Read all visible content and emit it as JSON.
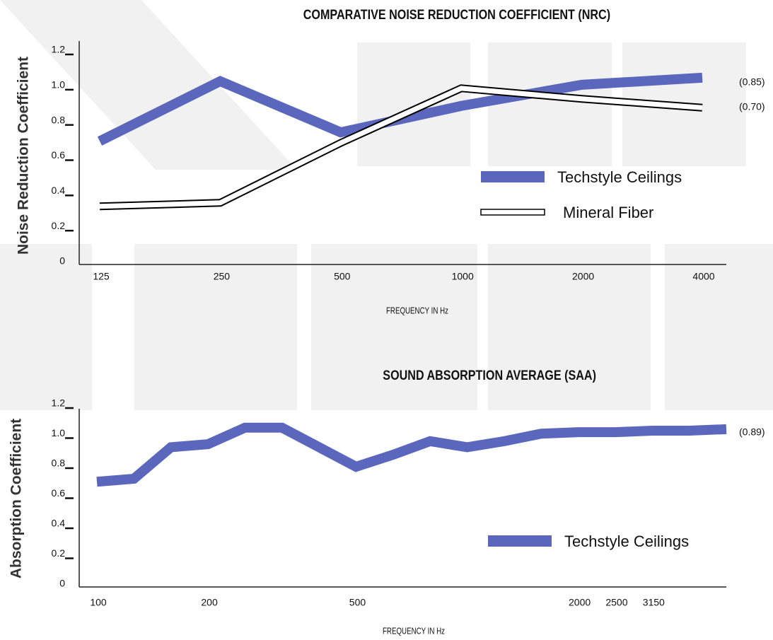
{
  "chart_data": [
    {
      "type": "line",
      "title": "COMPARATIVE NOISE REDUCTION COEFFICIENT (NRC)",
      "y_label": "Noise Reduction Coefficient",
      "x_label": "FREQUENCY IN Hz",
      "categories": [
        "125",
        "250",
        "500",
        "1000",
        "2000",
        "4000"
      ],
      "series": [
        {
          "name": "Techstyle Ceilings",
          "color": "#5a67bd",
          "values": [
            0.7,
            1.04,
            0.75,
            0.9,
            1.02,
            1.06
          ],
          "end_label": "(0.85)"
        },
        {
          "name": "Mineral Fiber",
          "color": "#ffffff",
          "edgecolor": "#000000",
          "values": [
            0.33,
            0.35,
            0.69,
            1.0,
            0.94,
            0.89
          ],
          "end_label": "(0.70)"
        }
      ],
      "ylim": [
        0,
        1.2
      ],
      "yticks": [
        0,
        0.2,
        0.4,
        0.6,
        0.8,
        {
          "value": 1,
          "label": "1.0"
        },
        1.2
      ],
      "legend": "center right",
      "grid": false
    },
    {
      "type": "line",
      "title": "SOUND ABSORPTION AVERAGE (SAA)",
      "y_label": "Absorption Coefficient",
      "x_label": "FREQUENCY IN Hz",
      "categories": [
        "100",
        null,
        null,
        "200",
        null,
        null,
        null,
        "500",
        null,
        null,
        null,
        null,
        null,
        "2000",
        "2500",
        "3150",
        null,
        null
      ],
      "series": [
        {
          "name": "Techstyle Ceilings",
          "color": "#5a67bd",
          "values": [
            0.7,
            0.72,
            0.93,
            0.95,
            1.06,
            1.06,
            0.93,
            0.8,
            0.88,
            0.97,
            0.93,
            0.97,
            1.02,
            1.03,
            1.03,
            1.04,
            1.04,
            1.05
          ],
          "end_label": "(0.89)"
        }
      ],
      "ylim": [
        0,
        1.2
      ],
      "yticks": [
        0,
        0.2,
        0.4,
        0.6,
        0.8,
        {
          "value": 1,
          "label": "1.0"
        },
        1.2
      ],
      "legend": "lower right",
      "grid": false
    }
  ]
}
